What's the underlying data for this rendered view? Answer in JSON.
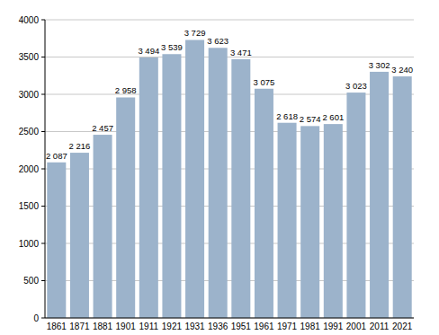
{
  "chart_data": {
    "type": "bar",
    "categories": [
      "1861",
      "1871",
      "1881",
      "1901",
      "1911",
      "1921",
      "1931",
      "1936",
      "1951",
      "1961",
      "1971",
      "1981",
      "1991",
      "2001",
      "2011",
      "2021"
    ],
    "values": [
      2087,
      2216,
      2457,
      2958,
      3494,
      3539,
      3729,
      3623,
      3471,
      3075,
      2618,
      2574,
      2601,
      3023,
      3302,
      3240
    ],
    "value_labels": [
      "2 087",
      "2 216",
      "2 457",
      "2 958",
      "3 494",
      "3 539",
      "3 729",
      "3 623",
      "3 471",
      "3 075",
      "2 618",
      "2 574",
      "2 601",
      "3 023",
      "3 302",
      "3 240"
    ],
    "color": "#9cb3cb",
    "ylim": [
      0,
      4000
    ],
    "yticks": [
      0,
      500,
      1000,
      1500,
      2000,
      2500,
      3000,
      3500,
      4000
    ],
    "grid": true,
    "data_labels": true
  }
}
